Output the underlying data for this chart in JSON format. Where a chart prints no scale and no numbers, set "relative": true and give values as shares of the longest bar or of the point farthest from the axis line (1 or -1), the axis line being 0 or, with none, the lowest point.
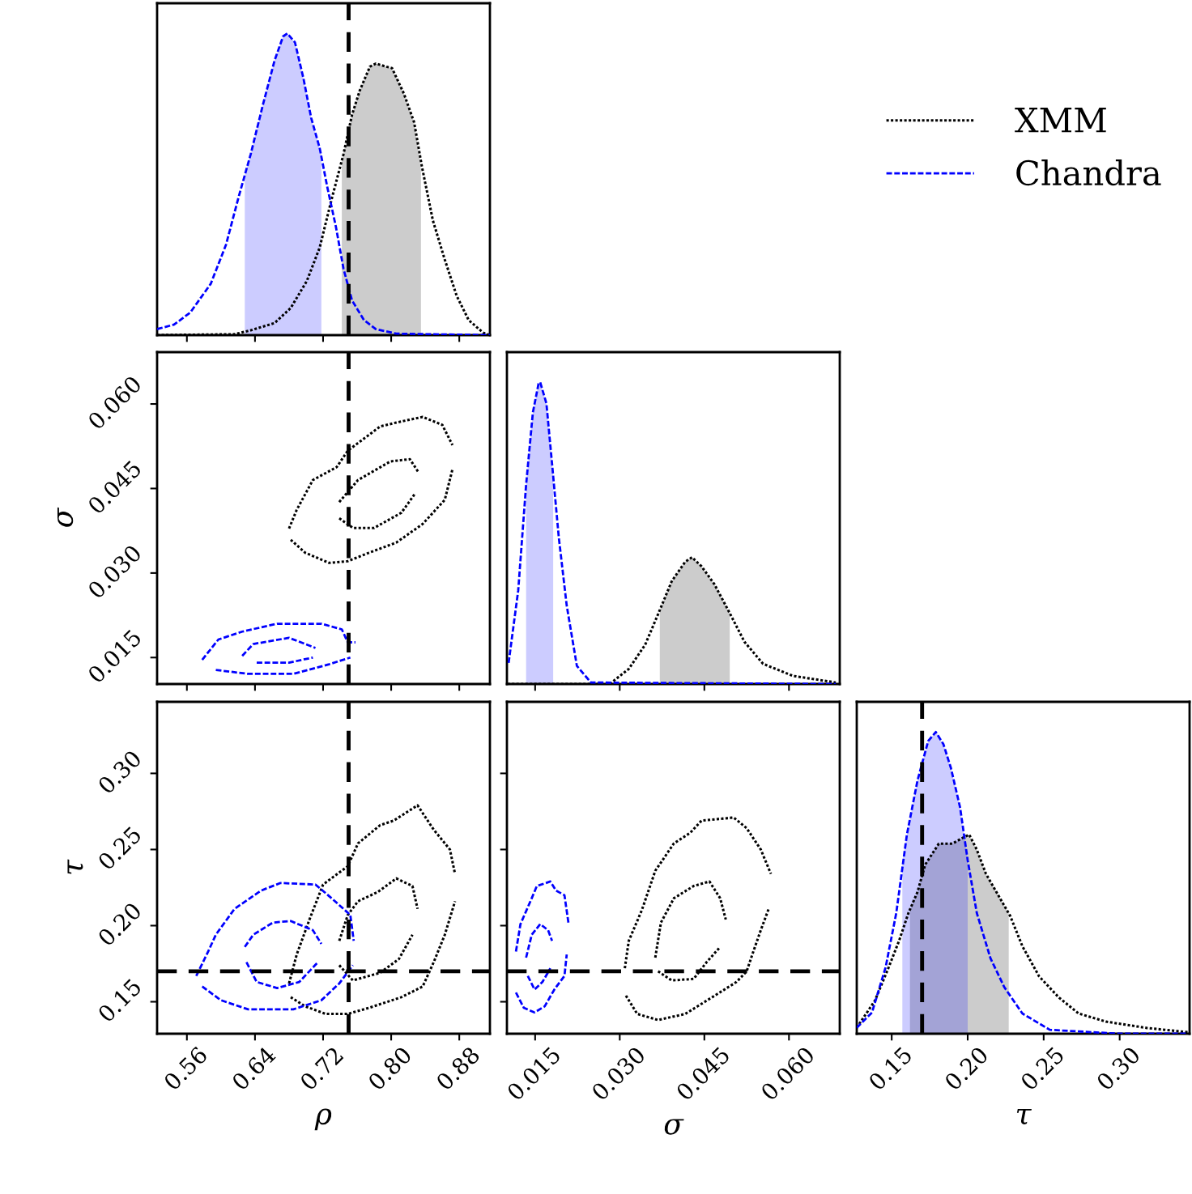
{
  "chart_data": [
    {
      "type": "line",
      "relative": true,
      "xlim": [
        0.525,
        0.916
      ],
      "xticks": [
        0.56,
        0.64,
        0.72,
        0.8,
        0.88
      ],
      "tick_labels": false,
      "legend": "right",
      "ref_lines": [
        {
          "axis": "x",
          "value": 0.75,
          "color": "#000000",
          "line_style": "dashed"
        }
      ],
      "series": [
        {
          "type": "area",
          "color": "#cccccc",
          "x": [
            0.742,
            0.754,
            0.763,
            0.775,
            0.782,
            0.794,
            0.801,
            0.815,
            0.827,
            0.835
          ],
          "values": [
            0.58,
            0.73,
            0.81,
            0.89,
            0.9,
            0.89,
            0.885,
            0.8,
            0.705,
            0.55
          ]
        },
        {
          "type": "area",
          "color": "#ccccff",
          "x": [
            0.628,
            0.635,
            0.649,
            0.663,
            0.673,
            0.678,
            0.687,
            0.697,
            0.706,
            0.718
          ],
          "values": [
            0.53,
            0.6,
            0.76,
            0.91,
            0.99,
            1.0,
            0.97,
            0.85,
            0.72,
            0.6
          ]
        },
        {
          "name": "XMM",
          "color": "#000000",
          "line_style": "dotted",
          "x": [
            0.525,
            0.616,
            0.635,
            0.663,
            0.682,
            0.701,
            0.716,
            0.73,
            0.744,
            0.754,
            0.763,
            0.775,
            0.782,
            0.794,
            0.801,
            0.815,
            0.827,
            0.836,
            0.849,
            0.863,
            0.877,
            0.891,
            0.908,
            0.916
          ],
          "values": [
            0,
            0.003,
            0.016,
            0.04,
            0.09,
            0.18,
            0.29,
            0.45,
            0.6,
            0.73,
            0.81,
            0.89,
            0.9,
            0.89,
            0.885,
            0.8,
            0.705,
            0.56,
            0.38,
            0.25,
            0.13,
            0.05,
            0.008,
            0
          ]
        },
        {
          "name": "Chandra",
          "color": "#0000ff",
          "line_style": "dashed",
          "x": [
            0.525,
            0.545,
            0.564,
            0.588,
            0.606,
            0.621,
            0.635,
            0.649,
            0.663,
            0.673,
            0.678,
            0.687,
            0.697,
            0.706,
            0.716,
            0.725,
            0.735,
            0.744,
            0.754,
            0.768,
            0.782,
            0.806,
            0.844,
            0.916
          ],
          "values": [
            0.02,
            0.035,
            0.075,
            0.17,
            0.3,
            0.46,
            0.6,
            0.76,
            0.91,
            0.99,
            1.0,
            0.97,
            0.85,
            0.72,
            0.62,
            0.49,
            0.36,
            0.22,
            0.115,
            0.05,
            0.02,
            0.005,
            0.003,
            0
          ]
        }
      ]
    },
    {
      "type": "line",
      "xlim": [
        0.525,
        0.916
      ],
      "xticks": [
        0.56,
        0.64,
        0.72,
        0.8,
        0.88
      ],
      "ylim": [
        0.0103,
        0.0692
      ],
      "yticks": [
        {
          "value": 0.015,
          "label": "0.015"
        },
        {
          "value": 0.03,
          "label": "0.030"
        },
        {
          "value": 0.045,
          "label": "0.045"
        },
        {
          "value": 0.06,
          "label": "0.060"
        }
      ],
      "tick_labels": "y",
      "ylabel": "σ",
      "ref_lines": [
        {
          "axis": "x",
          "value": 0.75,
          "color": "#000000",
          "line_style": "dashed"
        }
      ],
      "series": [
        {
          "color": "#000000",
          "line_style": "dotted",
          "x": [
            0.68,
            0.689,
            0.708,
            0.736,
            0.749,
            0.787,
            0.806,
            0.837,
            0.86,
            0.872
          ],
          "values": [
            0.0379,
            0.0412,
            0.0465,
            0.0488,
            0.0517,
            0.056,
            0.0567,
            0.0577,
            0.0563,
            0.0527
          ]
        },
        {
          "color": "#000000",
          "line_style": "dotted",
          "x": [
            0.682,
            0.699,
            0.727,
            0.749,
            0.774,
            0.806,
            0.837,
            0.863,
            0.872
          ],
          "values": [
            0.0359,
            0.0336,
            0.0318,
            0.0321,
            0.0336,
            0.0354,
            0.0387,
            0.043,
            0.0484
          ]
        },
        {
          "color": "#000000",
          "line_style": "dotted",
          "x": [
            0.739,
            0.761,
            0.799,
            0.822,
            0.832
          ],
          "values": [
            0.0426,
            0.0465,
            0.0498,
            0.0502,
            0.0479
          ]
        },
        {
          "color": "#000000",
          "line_style": "dotted",
          "x": [
            0.739,
            0.755,
            0.78,
            0.812,
            0.828
          ],
          "values": [
            0.0397,
            0.038,
            0.038,
            0.0407,
            0.0441
          ]
        },
        {
          "color": "#0000ff",
          "line_style": "dashed",
          "x": [
            0.578,
            0.597,
            0.625,
            0.666,
            0.718,
            0.742,
            0.749,
            0.758
          ],
          "values": [
            0.0146,
            0.0182,
            0.0196,
            0.021,
            0.021,
            0.02,
            0.0177,
            0.0177
          ]
        },
        {
          "color": "#0000ff",
          "line_style": "dashed",
          "x": [
            0.594,
            0.632,
            0.685,
            0.727,
            0.752
          ],
          "values": [
            0.0128,
            0.0121,
            0.0121,
            0.0138,
            0.015
          ]
        },
        {
          "color": "#0000ff",
          "line_style": "dashed",
          "x": [
            0.625,
            0.638,
            0.68,
            0.711
          ],
          "values": [
            0.0153,
            0.0174,
            0.0185,
            0.0167
          ]
        },
        {
          "color": "#0000ff",
          "line_style": "dashed",
          "x": [
            0.642,
            0.68,
            0.708
          ],
          "values": [
            0.0141,
            0.0141,
            0.015
          ]
        }
      ]
    },
    {
      "type": "line",
      "relative": true,
      "xlim": [
        0.01,
        0.069
      ],
      "xticks": [
        0.015,
        0.03,
        0.045,
        0.06
      ],
      "tick_labels": false,
      "series": [
        {
          "type": "area",
          "color": "#cccccc",
          "x": [
            0.0371,
            0.0392,
            0.0416,
            0.0428,
            0.0445,
            0.0468,
            0.0495
          ],
          "values": [
            0.245,
            0.34,
            0.405,
            0.42,
            0.39,
            0.33,
            0.235
          ]
        },
        {
          "type": "area",
          "color": "#ccccff",
          "x": [
            0.0134,
            0.0146,
            0.0156,
            0.0159,
            0.017,
            0.018,
            0.0182
          ],
          "values": [
            0.66,
            0.9,
            0.995,
            1.0,
            0.93,
            0.73,
            0.7
          ]
        },
        {
          "color": "#000000",
          "line_style": "dotted",
          "x": [
            0.0101,
            0.0282,
            0.0316,
            0.0345,
            0.0371,
            0.0392,
            0.0416,
            0.0428,
            0.0445,
            0.0468,
            0.0495,
            0.0521,
            0.0554,
            0.0607,
            0.0683
          ],
          "values": [
            0,
            0,
            0.05,
            0.13,
            0.245,
            0.34,
            0.405,
            0.42,
            0.39,
            0.33,
            0.235,
            0.14,
            0.067,
            0.027,
            0.005
          ]
        },
        {
          "color": "#0000ff",
          "line_style": "dashed",
          "x": [
            0.0103,
            0.012,
            0.0134,
            0.0146,
            0.0156,
            0.0159,
            0.017,
            0.018,
            0.0192,
            0.0206,
            0.0224,
            0.0249,
            0.0683
          ],
          "values": [
            0.07,
            0.31,
            0.66,
            0.9,
            0.995,
            1.0,
            0.93,
            0.73,
            0.485,
            0.26,
            0.06,
            0.005,
            0
          ]
        }
      ]
    },
    {
      "type": "line",
      "xlim": [
        0.525,
        0.916
      ],
      "xticks": [
        {
          "value": 0.56,
          "label": "0.56"
        },
        {
          "value": 0.64,
          "label": "0.64"
        },
        {
          "value": 0.72,
          "label": "0.72"
        },
        {
          "value": 0.8,
          "label": "0.80"
        },
        {
          "value": 0.88,
          "label": "0.88"
        }
      ],
      "ylim": [
        0.129,
        0.347
      ],
      "yticks": [
        {
          "value": 0.15,
          "label": "0.15"
        },
        {
          "value": 0.2,
          "label": "0.20"
        },
        {
          "value": 0.25,
          "label": "0.25"
        },
        {
          "value": 0.3,
          "label": "0.30"
        }
      ],
      "xlabel": "ρ",
      "ylabel": "τ",
      "ref_lines": [
        {
          "axis": "x",
          "value": 0.75,
          "color": "#000000",
          "line_style": "dashed"
        },
        {
          "axis": "y",
          "value": 0.17,
          "color": "#000000",
          "line_style": "dashed"
        }
      ],
      "series": [
        {
          "color": "#000000",
          "line_style": "dotted",
          "x": [
            0.68,
            0.689,
            0.704,
            0.72,
            0.749,
            0.761,
            0.787,
            0.803,
            0.831,
            0.85,
            0.869,
            0.875
          ],
          "values": [
            0.162,
            0.181,
            0.204,
            0.227,
            0.239,
            0.254,
            0.266,
            0.269,
            0.279,
            0.263,
            0.25,
            0.234
          ]
        },
        {
          "color": "#000000",
          "line_style": "dotted",
          "x": [
            0.682,
            0.699,
            0.723,
            0.749,
            0.774,
            0.812,
            0.837,
            0.85,
            0.863,
            0.875
          ],
          "values": [
            0.153,
            0.147,
            0.142,
            0.142,
            0.146,
            0.153,
            0.16,
            0.176,
            0.194,
            0.216
          ]
        },
        {
          "color": "#000000",
          "line_style": "dotted",
          "x": [
            0.739,
            0.749,
            0.761,
            0.784,
            0.806,
            0.825,
            0.831
          ],
          "values": [
            0.19,
            0.207,
            0.216,
            0.222,
            0.231,
            0.226,
            0.211
          ]
        },
        {
          "color": "#000000",
          "line_style": "dotted",
          "x": [
            0.739,
            0.755,
            0.787,
            0.809,
            0.825
          ],
          "values": [
            0.174,
            0.164,
            0.169,
            0.178,
            0.194
          ]
        },
        {
          "color": "#0000ff",
          "line_style": "dashed",
          "x": [
            0.571,
            0.585,
            0.594,
            0.616,
            0.647,
            0.67,
            0.711,
            0.73,
            0.752,
            0.756
          ],
          "values": [
            0.167,
            0.183,
            0.194,
            0.211,
            0.223,
            0.228,
            0.227,
            0.218,
            0.207,
            0.19
          ]
        },
        {
          "color": "#0000ff",
          "line_style": "dashed",
          "x": [
            0.578,
            0.6,
            0.632,
            0.685,
            0.718,
            0.739,
            0.755
          ],
          "values": [
            0.16,
            0.151,
            0.145,
            0.145,
            0.151,
            0.162,
            0.174
          ]
        },
        {
          "color": "#0000ff",
          "line_style": "dashed",
          "x": [
            0.628,
            0.638,
            0.661,
            0.682,
            0.708,
            0.718
          ],
          "values": [
            0.186,
            0.194,
            0.202,
            0.203,
            0.197,
            0.188
          ]
        },
        {
          "color": "#0000ff",
          "line_style": "dashed",
          "x": [
            0.63,
            0.642,
            0.666,
            0.692,
            0.714
          ],
          "values": [
            0.176,
            0.163,
            0.159,
            0.163,
            0.176
          ]
        }
      ]
    },
    {
      "type": "line",
      "xlim": [
        0.01,
        0.069
      ],
      "xticks": [
        {
          "value": 0.015,
          "label": "0.015"
        },
        {
          "value": 0.03,
          "label": "0.030"
        },
        {
          "value": 0.045,
          "label": "0.045"
        },
        {
          "value": 0.06,
          "label": "0.060"
        }
      ],
      "ylim": [
        0.129,
        0.347
      ],
      "yticks": [
        0.15,
        0.2,
        0.25,
        0.3
      ],
      "tick_labels": "x",
      "xlabel": "σ",
      "ref_lines": [
        {
          "axis": "y",
          "value": 0.17,
          "color": "#000000",
          "line_style": "dashed"
        }
      ],
      "series": [
        {
          "color": "#000000",
          "line_style": "dotted",
          "x": [
            0.0309,
            0.0316,
            0.0339,
            0.0363,
            0.0396,
            0.0425,
            0.0445,
            0.0502,
            0.0525,
            0.055,
            0.0568
          ],
          "values": [
            0.172,
            0.19,
            0.21,
            0.236,
            0.254,
            0.261,
            0.269,
            0.271,
            0.264,
            0.25,
            0.234
          ]
        },
        {
          "color": "#000000",
          "line_style": "dotted",
          "x": [
            0.0311,
            0.0331,
            0.0368,
            0.0416,
            0.0464,
            0.0507,
            0.0525,
            0.0535,
            0.055,
            0.0564
          ],
          "values": [
            0.154,
            0.142,
            0.138,
            0.142,
            0.153,
            0.163,
            0.17,
            0.181,
            0.197,
            0.211
          ]
        },
        {
          "color": "#000000",
          "line_style": "dotted",
          "x": [
            0.0363,
            0.0373,
            0.0396,
            0.0431,
            0.0459,
            0.0478,
            0.0488
          ],
          "values": [
            0.179,
            0.202,
            0.218,
            0.226,
            0.229,
            0.218,
            0.204
          ]
        },
        {
          "color": "#000000",
          "line_style": "dotted",
          "x": [
            0.0368,
            0.0392,
            0.0431,
            0.0454,
            0.0478
          ],
          "values": [
            0.17,
            0.164,
            0.165,
            0.176,
            0.186
          ]
        },
        {
          "color": "#0000ff",
          "line_style": "dashed",
          "x": [
            0.0116,
            0.0124,
            0.0144,
            0.0153,
            0.0177,
            0.0187,
            0.0202,
            0.0209
          ],
          "values": [
            0.183,
            0.201,
            0.218,
            0.226,
            0.229,
            0.223,
            0.22,
            0.202
          ]
        },
        {
          "color": "#0000ff",
          "line_style": "dashed",
          "x": [
            0.0116,
            0.013,
            0.0149,
            0.0167,
            0.0184,
            0.0202,
            0.0206
          ],
          "values": [
            0.156,
            0.146,
            0.143,
            0.147,
            0.158,
            0.167,
            0.181
          ]
        },
        {
          "color": "#0000ff",
          "line_style": "dashed",
          "x": [
            0.0134,
            0.0144,
            0.0159,
            0.0173,
            0.018
          ],
          "values": [
            0.179,
            0.194,
            0.201,
            0.197,
            0.19
          ]
        },
        {
          "color": "#0000ff",
          "line_style": "dashed",
          "x": [
            0.0137,
            0.0149,
            0.0163,
            0.0177
          ],
          "values": [
            0.167,
            0.158,
            0.163,
            0.172
          ]
        }
      ]
    },
    {
      "type": "line",
      "relative": true,
      "xlim": [
        0.127,
        0.346
      ],
      "xticks": [
        {
          "value": 0.15,
          "label": "0.15"
        },
        {
          "value": 0.2,
          "label": "0.20"
        },
        {
          "value": 0.25,
          "label": "0.25"
        },
        {
          "value": 0.3,
          "label": "0.30"
        }
      ],
      "tick_labels": "x",
      "xlabel": "τ",
      "ref_lines": [
        {
          "axis": "x",
          "value": 0.17,
          "color": "#000000",
          "line_style": "dashed"
        }
      ],
      "series": [
        {
          "type": "area",
          "color": "#cccccc",
          "x": [
            0.162,
            0.167,
            0.172,
            0.181,
            0.19,
            0.197,
            0.201,
            0.206,
            0.212,
            0.22,
            0.227
          ],
          "values": [
            0.41,
            0.47,
            0.56,
            0.63,
            0.63,
            0.65,
            0.66,
            0.61,
            0.53,
            0.46,
            0.4
          ]
        },
        {
          "type": "area",
          "color": "#ccccff",
          "x": [
            0.157,
            0.16,
            0.167,
            0.174,
            0.179,
            0.184,
            0.189,
            0.195,
            0.2
          ],
          "values": [
            0.57,
            0.66,
            0.84,
            0.97,
            1.0,
            0.96,
            0.88,
            0.75,
            0.575
          ]
        },
        {
          "color": "#000000",
          "line_style": "dotted",
          "x": [
            0.127,
            0.139,
            0.148,
            0.155,
            0.161,
            0.167,
            0.172,
            0.181,
            0.19,
            0.197,
            0.201,
            0.206,
            0.212,
            0.22,
            0.228,
            0.236,
            0.247,
            0.26,
            0.273,
            0.291,
            0.318,
            0.345
          ],
          "values": [
            0.02,
            0.11,
            0.22,
            0.31,
            0.4,
            0.47,
            0.56,
            0.63,
            0.63,
            0.65,
            0.66,
            0.61,
            0.53,
            0.46,
            0.39,
            0.29,
            0.19,
            0.12,
            0.067,
            0.04,
            0.019,
            0.005
          ]
        },
        {
          "color": "#0000ff",
          "line_style": "dashed",
          "x": [
            0.127,
            0.137,
            0.146,
            0.153,
            0.16,
            0.167,
            0.174,
            0.179,
            0.184,
            0.189,
            0.195,
            0.2,
            0.206,
            0.215,
            0.224,
            0.236,
            0.254,
            0.3,
            0.345
          ],
          "values": [
            0.02,
            0.07,
            0.22,
            0.4,
            0.66,
            0.84,
            0.97,
            1.0,
            0.96,
            0.88,
            0.75,
            0.575,
            0.4,
            0.25,
            0.155,
            0.067,
            0.013,
            0,
            0
          ]
        }
      ]
    }
  ]
}
